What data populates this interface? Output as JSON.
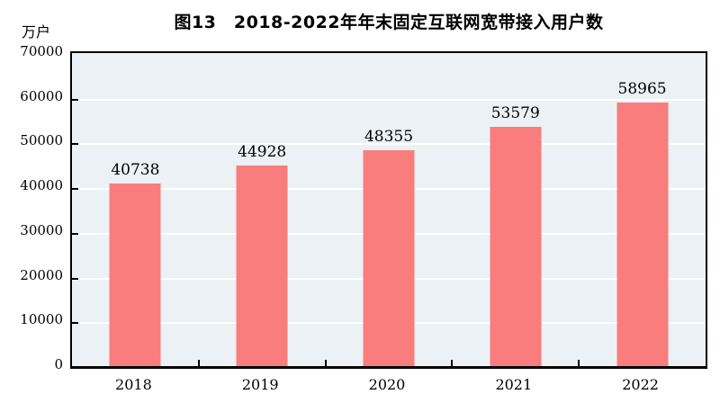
{
  "title": "图13　2018-2022年年末固定互联网宽带接入用户数",
  "unit_label": "万户",
  "colors": {
    "bar": "#f97d7d",
    "plot_bg": "#ebf1f4",
    "grid": "#ffffff",
    "frame": "#000000",
    "text": "#000000",
    "page_bg": "#ffffff"
  },
  "chart_data": {
    "type": "bar",
    "title": "图13　2018-2022年年末固定互联网宽带接入用户数",
    "categories": [
      "2018",
      "2019",
      "2020",
      "2021",
      "2022"
    ],
    "values": [
      40738,
      44928,
      48355,
      53579,
      58965
    ],
    "xlabel": "",
    "ylabel": "万户",
    "ylim": [
      0,
      70000
    ],
    "ytick_step": 10000,
    "yticks": [
      0,
      10000,
      20000,
      30000,
      40000,
      50000,
      60000,
      70000
    ],
    "grid": "horizontal",
    "legend": "none",
    "data_labels": true,
    "bar_color": "#f97d7d"
  }
}
